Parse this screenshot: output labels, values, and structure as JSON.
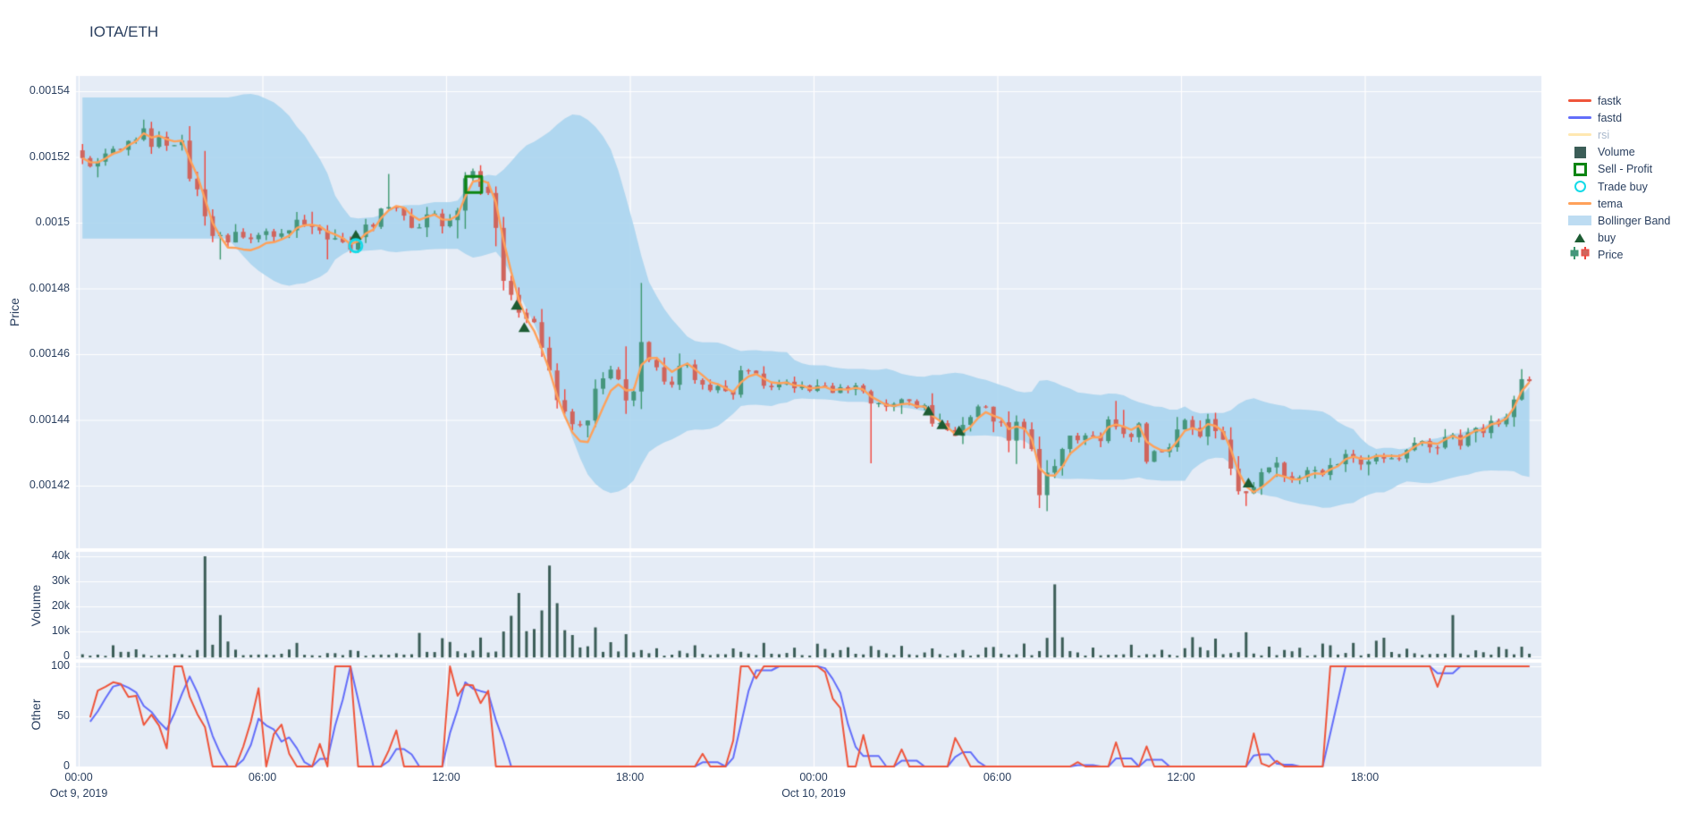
{
  "title": "IOTA/ETH",
  "colors": {
    "text": "#2a3f5f",
    "muted_text": "#a9b8cc",
    "plot_bg": "#E5ECF6",
    "grid": "#ffffff",
    "fastk": "#EF553B",
    "fastd": "#636EFA",
    "rsi": "#FECB52",
    "volume": "#3b5d57",
    "sell_profit": "#0d8512",
    "trade_buy": "#13dbe8",
    "tema": "#FFA15A",
    "bollinger_fill": "rgba(164,210,238,0.82)",
    "bollinger_swatch": "#bddcf2",
    "buy": "#1d5c33",
    "candle_up": "#3D9970",
    "candle_up_fill": "#45967d",
    "candle_down": "#F1453B",
    "candle_down_fill": "#d0655d"
  },
  "legend": {
    "items": [
      {
        "label": "fastk",
        "icon": "line",
        "color": "#EF553B",
        "muted": false
      },
      {
        "label": "fastd",
        "icon": "line",
        "color": "#636EFA",
        "muted": false
      },
      {
        "label": "rsi",
        "icon": "line",
        "color": "#FECB52",
        "muted": true
      },
      {
        "label": "Volume",
        "icon": "square",
        "color": "#3b5d57",
        "muted": false
      },
      {
        "label": "Sell - Profit",
        "icon": "square-open",
        "color": "#0d8512",
        "muted": false
      },
      {
        "label": "Trade buy",
        "icon": "circle-open",
        "color": "#13dbe8",
        "muted": false
      },
      {
        "label": "tema",
        "icon": "line",
        "color": "#FFA15A",
        "muted": false
      },
      {
        "label": "Bollinger Band",
        "icon": "band",
        "color": "#bddcf2",
        "muted": false
      },
      {
        "label": "buy",
        "icon": "triangle",
        "color": "#1d5c33",
        "muted": false
      },
      {
        "label": "Price",
        "icon": "candle",
        "color": "#3D9970",
        "muted": false
      }
    ]
  },
  "axes": {
    "price": {
      "title": "Price",
      "ticks": [
        {
          "label": "0.00154",
          "value": 0.00154
        },
        {
          "label": "0.00152",
          "value": 0.00152
        },
        {
          "label": "0.0015",
          "value": 0.0015
        },
        {
          "label": "0.00148",
          "value": 0.00148
        },
        {
          "label": "0.00146",
          "value": 0.00146
        },
        {
          "label": "0.00144",
          "value": 0.00144
        },
        {
          "label": "0.00142",
          "value": 0.00142
        }
      ]
    },
    "volume": {
      "title": "Volume",
      "ticks": [
        {
          "label": "40k",
          "value": 40000
        },
        {
          "label": "30k",
          "value": 30000
        },
        {
          "label": "20k",
          "value": 20000
        },
        {
          "label": "10k",
          "value": 10000
        },
        {
          "label": "0",
          "value": 0
        }
      ]
    },
    "other": {
      "title": "Other",
      "ticks": [
        {
          "label": "100",
          "value": 100
        },
        {
          "label": "50",
          "value": 50
        },
        {
          "label": "0",
          "value": 0
        }
      ]
    },
    "x": {
      "ticks": [
        {
          "label": "00:00",
          "sub": "Oct 9, 2019",
          "t": 0
        },
        {
          "label": "06:00",
          "t": 6
        },
        {
          "label": "12:00",
          "t": 12
        },
        {
          "label": "18:00",
          "t": 18
        },
        {
          "label": "00:00",
          "sub": "Oct 10, 2019",
          "t": 24
        },
        {
          "label": "06:00",
          "t": 30
        },
        {
          "label": "12:00",
          "t": 36
        },
        {
          "label": "18:00",
          "t": 42
        }
      ]
    }
  },
  "chart_data": {
    "type": "candlestick",
    "pair": "IOTA/ETH",
    "interval_hours": 0.25,
    "t_range": [
      0,
      47.6
    ],
    "price_axis_range": [
      0.001401,
      0.0015446
    ],
    "volume_axis_range": [
      0,
      41500
    ],
    "oscillator_axis_range": [
      0,
      100
    ],
    "seed": 9,
    "price_anchors": [
      [
        0,
        0.001522
      ],
      [
        0.3,
        0.0015205
      ],
      [
        0.55,
        0.001515
      ],
      [
        0.8,
        0.0015185
      ],
      [
        1.05,
        0.0015205
      ],
      [
        1.35,
        0.0015215
      ],
      [
        1.7,
        0.0015245
      ],
      [
        2.0,
        0.001527
      ],
      [
        2.25,
        0.0015285
      ],
      [
        2.5,
        0.001524
      ],
      [
        2.75,
        0.001526
      ],
      [
        3.0,
        0.001523
      ],
      [
        3.3,
        0.001522
      ],
      [
        3.55,
        0.001525
      ],
      [
        3.8,
        0.001513
      ],
      [
        4.05,
        0.001508
      ],
      [
        4.3,
        0.0014985
      ],
      [
        4.6,
        0.001496
      ],
      [
        4.9,
        0.001494
      ],
      [
        5.2,
        0.0014985
      ],
      [
        5.5,
        0.001497
      ],
      [
        5.8,
        0.0014955
      ],
      [
        6.1,
        0.001495
      ],
      [
        6.4,
        0.0014975
      ],
      [
        6.7,
        0.0014965
      ],
      [
        7.0,
        0.0014995
      ],
      [
        7.35,
        0.0015
      ],
      [
        7.7,
        0.001499
      ],
      [
        8.1,
        0.001496
      ],
      [
        8.55,
        0.001495
      ],
      [
        9.05,
        0.0014925
      ],
      [
        9.5,
        0.0014985
      ],
      [
        9.85,
        0.001501
      ],
      [
        10.2,
        0.001506
      ],
      [
        10.5,
        0.0015035
      ],
      [
        10.8,
        0.001499
      ],
      [
        11.1,
        0.0014955
      ],
      [
        11.4,
        0.0015
      ],
      [
        11.65,
        0.0015045
      ],
      [
        11.95,
        0.0014985
      ],
      [
        12.25,
        0.0015
      ],
      [
        12.55,
        0.001508
      ],
      [
        12.85,
        0.0015145
      ],
      [
        13.2,
        0.0015135
      ],
      [
        13.55,
        0.0015075
      ],
      [
        13.8,
        0.0014945
      ],
      [
        14.05,
        0.001481
      ],
      [
        14.3,
        0.0014755
      ],
      [
        14.6,
        0.001469
      ],
      [
        14.85,
        0.001472
      ],
      [
        15.1,
        0.0014645
      ],
      [
        15.35,
        0.001456
      ],
      [
        15.6,
        0.001451
      ],
      [
        15.85,
        0.001446
      ],
      [
        16.1,
        0.001442
      ],
      [
        16.35,
        0.0014385
      ],
      [
        16.6,
        0.001438
      ],
      [
        16.85,
        0.0014425
      ],
      [
        17.1,
        0.0014505
      ],
      [
        17.4,
        0.001457
      ],
      [
        17.65,
        0.001453
      ],
      [
        17.95,
        0.001445
      ],
      [
        18.2,
        0.0014475
      ],
      [
        18.5,
        0.00146
      ],
      [
        18.75,
        0.001458
      ],
      [
        19.0,
        0.0014545
      ],
      [
        19.25,
        0.001451
      ],
      [
        19.55,
        0.001452
      ],
      [
        19.8,
        0.0014565
      ],
      [
        20.05,
        0.0014555
      ],
      [
        20.3,
        0.0014525
      ],
      [
        20.6,
        0.001451
      ],
      [
        20.9,
        0.0014495
      ],
      [
        21.2,
        0.001447
      ],
      [
        21.5,
        0.001449
      ],
      [
        21.8,
        0.001455
      ],
      [
        22.1,
        0.001456
      ],
      [
        22.4,
        0.001452
      ],
      [
        22.8,
        0.001451
      ],
      [
        23.2,
        0.001452
      ],
      [
        23.6,
        0.001449
      ],
      [
        24.0,
        0.00145
      ],
      [
        24.4,
        0.0014515
      ],
      [
        24.8,
        0.001448
      ],
      [
        25.2,
        0.0014505
      ],
      [
        25.6,
        0.0014495
      ],
      [
        25.85,
        0.0014455
      ],
      [
        26.1,
        0.001444
      ],
      [
        26.5,
        0.001445
      ],
      [
        26.9,
        0.0014455
      ],
      [
        27.2,
        0.0014445
      ],
      [
        27.55,
        0.0014445
      ],
      [
        27.8,
        0.0014425
      ],
      [
        28.2,
        0.0014385
      ],
      [
        28.55,
        0.001437
      ],
      [
        28.85,
        0.001436
      ],
      [
        29.2,
        0.0014395
      ],
      [
        29.55,
        0.0014425
      ],
      [
        29.9,
        0.001443
      ],
      [
        30.2,
        0.001437
      ],
      [
        30.5,
        0.0014355
      ],
      [
        30.8,
        0.0014415
      ],
      [
        31.05,
        0.001435
      ],
      [
        31.3,
        0.001428
      ],
      [
        31.5,
        0.0014185
      ],
      [
        31.7,
        0.0014215
      ],
      [
        31.95,
        0.001428
      ],
      [
        32.3,
        0.001433
      ],
      [
        32.7,
        0.0014355
      ],
      [
        33.0,
        0.0014345
      ],
      [
        33.4,
        0.001433
      ],
      [
        33.8,
        0.001439
      ],
      [
        34.1,
        0.001437
      ],
      [
        34.45,
        0.0014345
      ],
      [
        34.75,
        0.001437
      ],
      [
        35.05,
        0.001428
      ],
      [
        35.4,
        0.001431
      ],
      [
        35.75,
        0.0014325
      ],
      [
        36.1,
        0.0014365
      ],
      [
        36.45,
        0.00144
      ],
      [
        36.7,
        0.001434
      ],
      [
        37.0,
        0.001438
      ],
      [
        37.3,
        0.0014375
      ],
      [
        37.6,
        0.001431
      ],
      [
        37.85,
        0.001425
      ],
      [
        38.1,
        0.001417
      ],
      [
        38.35,
        0.001419
      ],
      [
        38.7,
        0.001424
      ],
      [
        39.1,
        0.001427
      ],
      [
        39.45,
        0.001425
      ],
      [
        39.75,
        0.0014205
      ],
      [
        40.1,
        0.001422
      ],
      [
        40.5,
        0.0014255
      ],
      [
        40.9,
        0.001424
      ],
      [
        41.3,
        0.0014275
      ],
      [
        41.7,
        0.0014295
      ],
      [
        42.1,
        0.001427
      ],
      [
        42.5,
        0.001429
      ],
      [
        42.9,
        0.00143
      ],
      [
        43.3,
        0.001429
      ],
      [
        43.7,
        0.0014315
      ],
      [
        44.1,
        0.001433
      ],
      [
        44.5,
        0.001432
      ],
      [
        44.9,
        0.0014345
      ],
      [
        45.3,
        0.0014335
      ],
      [
        45.7,
        0.001436
      ],
      [
        46.1,
        0.001438
      ],
      [
        46.5,
        0.0014405
      ],
      [
        46.9,
        0.001443
      ],
      [
        47.15,
        0.0014485
      ],
      [
        47.4,
        0.001454
      ],
      [
        47.6,
        0.001447
      ]
    ],
    "wick_low_events": [
      [
        0.6,
        0.0015138
      ],
      [
        4.65,
        0.0014888
      ],
      [
        9.05,
        0.0014908
      ],
      [
        16.6,
        0.0014347
      ],
      [
        25.95,
        0.0014268
      ],
      [
        26.95,
        0.0014418
      ],
      [
        31.5,
        0.0014135
      ],
      [
        38.1,
        0.0014138
      ]
    ],
    "wick_high_events": [
      [
        2.2,
        0.0015298
      ],
      [
        10.2,
        0.0015148
      ],
      [
        13.0,
        0.0015158
      ],
      [
        33.8,
        0.0014458
      ]
    ],
    "volume": {
      "base_min": 250,
      "base_scale": 700,
      "clusters": [
        [
          3.9,
          5.3,
          1800
        ],
        [
          10.8,
          12.9,
          1300
        ],
        [
          13.0,
          17.0,
          2600
        ],
        [
          17.2,
          18.6,
          1500
        ],
        [
          25.6,
          26.6,
          1200
        ],
        [
          31.4,
          32.7,
          1500
        ],
        [
          35.9,
          38.6,
          1300
        ],
        [
          41.9,
          43.1,
          1500
        ],
        [
          44.3,
          45.2,
          1500
        ]
      ],
      "spikes": [
        [
          4.1,
          40000
        ],
        [
          4.55,
          23000
        ],
        [
          5.0,
          6000
        ],
        [
          7.0,
          5000
        ],
        [
          9.0,
          4500
        ],
        [
          11.15,
          8000
        ],
        [
          11.8,
          9500
        ],
        [
          12.2,
          6500
        ],
        [
          13.1,
          5500
        ],
        [
          13.9,
          9000
        ],
        [
          14.15,
          11000
        ],
        [
          14.35,
          25000
        ],
        [
          14.6,
          8000
        ],
        [
          14.9,
          9000
        ],
        [
          15.15,
          16000
        ],
        [
          15.4,
          35000
        ],
        [
          15.65,
          20000
        ],
        [
          15.9,
          8000
        ],
        [
          16.1,
          7500
        ],
        [
          16.5,
          5500
        ],
        [
          16.85,
          10500
        ],
        [
          17.3,
          6000
        ],
        [
          17.9,
          7500
        ],
        [
          18.8,
          4000
        ],
        [
          20.1,
          4000
        ],
        [
          21.3,
          3500
        ],
        [
          22.4,
          5000
        ],
        [
          23.3,
          3500
        ],
        [
          24.2,
          4000
        ],
        [
          25.1,
          3000
        ],
        [
          26.0,
          6000
        ],
        [
          26.9,
          3500
        ],
        [
          27.8,
          4200
        ],
        [
          28.8,
          3200
        ],
        [
          29.9,
          3500
        ],
        [
          30.9,
          4000
        ],
        [
          31.5,
          5000
        ],
        [
          31.8,
          38000
        ],
        [
          32.1,
          7000
        ],
        [
          33.1,
          3200
        ],
        [
          34.3,
          3000
        ],
        [
          35.3,
          3500
        ],
        [
          36.3,
          8000
        ],
        [
          36.7,
          4500
        ],
        [
          37.1,
          4200
        ],
        [
          38.1,
          7000
        ],
        [
          38.9,
          3600
        ],
        [
          39.8,
          3400
        ],
        [
          40.8,
          4000
        ],
        [
          41.6,
          4500
        ],
        [
          42.5,
          13500
        ],
        [
          43.3,
          3800
        ],
        [
          44.9,
          15000
        ],
        [
          45.7,
          3000
        ],
        [
          46.3,
          3500
        ],
        [
          47.2,
          5000
        ]
      ]
    },
    "oscillator": {
      "series": [
        "fastk",
        "fastd"
      ],
      "jump_prob": 0.13,
      "step": 70,
      "snap_prob": 0.6,
      "hold_prob": 0.55,
      "fastd_smoothing": 3
    },
    "overlays": {
      "tema_period": 9,
      "bollinger_window": 20,
      "bollinger_k": 2,
      "rsi_visible": false
    },
    "markers": {
      "sell_profit": [
        [
          12.9,
          0.0015116
        ]
      ],
      "trade_buy": [
        [
          9.05,
          0.001493
        ]
      ],
      "buy": [
        [
          9.05,
          0.0014962
        ],
        [
          14.3,
          0.0014749
        ],
        [
          14.55,
          0.0014681
        ],
        [
          27.75,
          0.0014427
        ],
        [
          28.2,
          0.0014386
        ],
        [
          28.75,
          0.0014367
        ],
        [
          38.2,
          0.0014208
        ]
      ]
    }
  }
}
